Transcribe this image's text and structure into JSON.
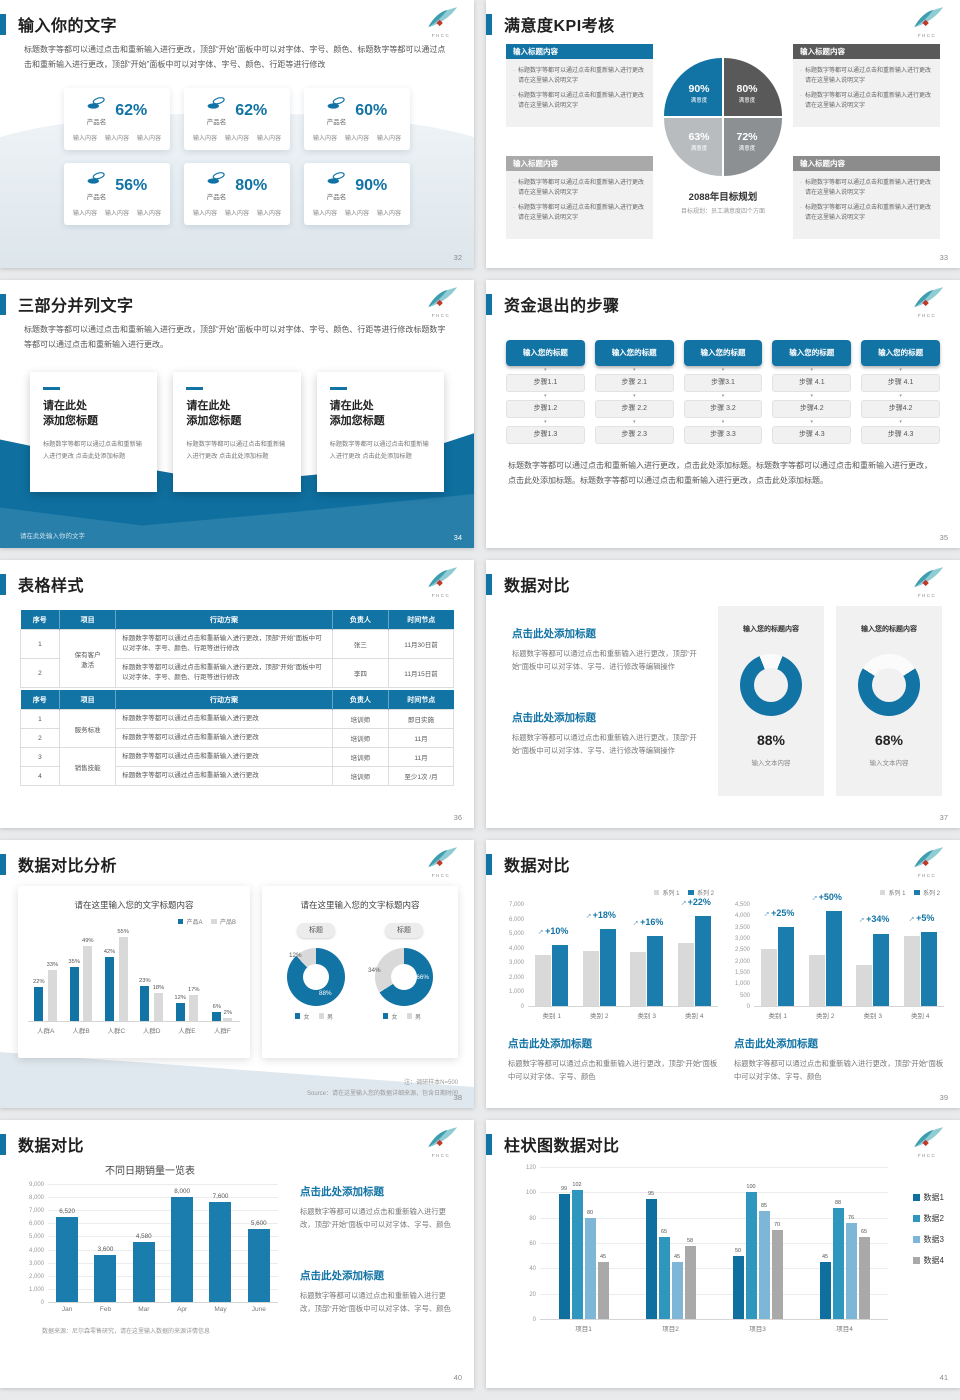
{
  "accent_color": "#1273a5",
  "gray_bar_color": "#d9d9d9",
  "logo": {
    "text": "FHCC"
  },
  "slides": [
    {
      "title": "输入你的文字",
      "page": "32",
      "intro": "标题数字等都可以通过点击和重新输入进行更改，顶部“开始”面板中可以对字体、字号、颜色、标题数字等都可以通过点击和重新输入进行更改，顶部“开始”面板中可以对字体、字号、颜色、行距等进行修改",
      "cards": [
        {
          "name": "产品名",
          "percent": "62%",
          "items": [
            "输入内容",
            "输入内容",
            "输入内容"
          ]
        },
        {
          "name": "产品名",
          "percent": "62%",
          "items": [
            "输入内容",
            "输入内容",
            "输入内容"
          ]
        },
        {
          "name": "产品名",
          "percent": "60%",
          "items": [
            "输入内容",
            "输入内容",
            "输入内容"
          ]
        },
        {
          "name": "产品名",
          "percent": "56%",
          "items": [
            "输入内容",
            "输入内容",
            "输入内容"
          ]
        },
        {
          "name": "产品名",
          "percent": "80%",
          "items": [
            "输入内容",
            "输入内容",
            "输入内容"
          ]
        },
        {
          "name": "产品名",
          "percent": "90%",
          "items": [
            "输入内容",
            "输入内容",
            "输入内容"
          ]
        }
      ]
    },
    {
      "title": "满意度KPI考核",
      "page": "33",
      "boxes": [
        {
          "header": "输入标题内容",
          "color": "#1273a5",
          "bullets": [
            "标题数字等都可以通过点击和重新输入进行更改 请在这里输入说明文字",
            "标题数字等都可以通过点击和重新输入进行更改 请在这里输入说明文字"
          ]
        },
        {
          "header": "输入标题内容",
          "color": "#595959",
          "bullets": [
            "标题数字等都可以通过点击和重新输入进行更改 请在这里输入说明文字",
            "标题数字等都可以通过点击和重新输入进行更改 请在这里输入说明文字"
          ]
        },
        {
          "header": "输入标题内容",
          "color": "#a9a9a9",
          "bullets": [
            "标题数字等都可以通过点击和重新输入进行更改 请在这里输入说明文字",
            "标题数字等都可以通过点击和重新输入进行更改 请在这里输入说明文字"
          ]
        },
        {
          "header": "输入标题内容",
          "color": "#8c8c8c",
          "bullets": [
            "标题数字等都可以通过点击和重新输入进行更改 请在这里输入说明文字",
            "标题数字等都可以通过点击和重新输入进行更改 请在这里输入说明文字"
          ]
        }
      ],
      "chart_data": {
        "type": "pie",
        "slices": [
          {
            "value": "90%",
            "label": "满意度",
            "color": "#1273a5"
          },
          {
            "value": "80%",
            "label": "满意度",
            "color": "#595959"
          },
          {
            "value": "63%",
            "label": "满意度",
            "color": "#b9bcbe"
          },
          {
            "value": "72%",
            "label": "满意度",
            "color": "#8c9093"
          }
        ]
      },
      "center_title": "2088年目标规划",
      "center_sub": "目标规划：员工满意度四个方面"
    },
    {
      "title": "三部分并列文字",
      "page": "34",
      "intro": "标题数字等都可以通过点击和重新输入进行更改，顶部“开始”面板中可以对字体、字号、颜色、行距等进行修改标题数字等都可以通过点击和重新输入进行更改。",
      "cards": [
        {
          "title": "请在此处\n添加您标题",
          "body": "标题数字等都可以通过点击和重新输入进行更改 点击此处添加标题"
        },
        {
          "title": "请在此处\n添加您标题",
          "body": "标题数字等都可以通过点击和重新输入进行更改 点击此处添加标题"
        },
        {
          "title": "请在此处\n添加您标题",
          "body": "标题数字等都可以通过点击和重新输入进行更改 点击此处添加标题"
        }
      ],
      "footer": "请在此处输入你的文字"
    },
    {
      "title": "资金退出的步骤",
      "page": "35",
      "columns": [
        {
          "header": "输入您的标题",
          "steps": [
            "步骤1.1",
            "步骤1.2",
            "步骤1.3"
          ]
        },
        {
          "header": "输入您的标题",
          "steps": [
            "步骤 2.1",
            "步骤 2.2",
            "步骤 2.3"
          ]
        },
        {
          "header": "输入您的标题",
          "steps": [
            "步骤3.1",
            "步骤 3.2",
            "步骤 3.3"
          ]
        },
        {
          "header": "输入您的标题",
          "steps": [
            "步骤 4.1",
            "步骤4.2",
            "步骤 4.3"
          ]
        },
        {
          "header": "输入您的标题",
          "steps": [
            "步骤 4.1",
            "步骤4.2",
            "步骤 4.3"
          ]
        }
      ],
      "body": "标题数字等都可以通过点击和重新输入进行更改，点击此处添加标题。标题数字等都可以通过点击和重新输入进行更改，点击此处添加标题。标题数字等都可以通过点击和重新输入进行更改，点击此处添加标题。"
    },
    {
      "title": "表格样式",
      "page": "36",
      "headers": [
        "序号",
        "项目",
        "行动方案",
        "负责人",
        "时间节点"
      ],
      "table1": [
        {
          "no": "1",
          "project": "保有客户\n激活",
          "span": 2,
          "action": "标题数字等都可以通过点击和重新输入进行更改，顶部“开始”面板中可以对字体、字号、颜色、行距等进行修改",
          "owner": "张三",
          "time": "11月30日前"
        },
        {
          "no": "2",
          "action": "标题数字等都可以通过点击和重新输入进行更改，顶部“开始”面板中可以对字体、字号、颜色、行距等进行修改",
          "owner": "李四",
          "time": "11月15日前"
        }
      ],
      "table2": [
        {
          "no": "1",
          "project": "服务标准",
          "span": 2,
          "action": "标题数字等都可以通过点击和重新输入进行更改",
          "owner": "培训师",
          "time": "即日实施"
        },
        {
          "no": "2",
          "action": "标题数字等都可以通过点击和重新输入进行更改",
          "owner": "培训师",
          "time": "11月"
        },
        {
          "no": "3",
          "project": "销售技能",
          "span": 2,
          "action": "标题数字等都可以通过点击和重新输入进行更改",
          "owner": "培训师",
          "time": "11月"
        },
        {
          "no": "4",
          "action": "标题数字等都可以通过点击和重新输入进行更改",
          "owner": "培训师",
          "time": "至少1次 /月"
        }
      ]
    },
    {
      "title": "数据对比",
      "page": "37",
      "blocks": [
        {
          "heading": "点击此处添加标题",
          "body": "标题数字等都可以通过点击和重新输入进行更改，顶部“开始”面板中可以对字体、字号、进行修改等编辑操作"
        },
        {
          "heading": "点击此处添加标题",
          "body": "标题数字等都可以通过点击和重新输入进行更改，顶部“开始”面板中可以对字体、字号、进行修改等编辑操作"
        }
      ],
      "donut_cards": [
        {
          "header": "输入您的标题内容",
          "percent": 88,
          "percent_label": "88%",
          "caption": "输入文本内容",
          "color": "#1273a5"
        },
        {
          "header": "输入您的标题内容",
          "percent": 68,
          "percent_label": "68%",
          "caption": "输入文本内容",
          "color": "#1273a5"
        }
      ]
    },
    {
      "title": "数据对比分析",
      "page": "38",
      "left_title": "请在这里输入您的文字标题内容",
      "right_title": "请在这里输入您的文字标题内容",
      "chart_data": [
        {
          "type": "bar",
          "categories": [
            "人群A",
            "人群B",
            "人群C",
            "人群D",
            "人群E",
            "人群F"
          ],
          "series": [
            {
              "name": "产品A",
              "color": "#1273a5",
              "values": [
                22,
                35,
                42,
                23,
                12,
                6
              ],
              "labels": [
                "22%",
                "35%",
                "42%",
                "23%",
                "12%",
                "6%"
              ]
            },
            {
              "name": "产品B",
              "color": "#d9d9d9",
              "values": [
                33,
                49,
                55,
                18,
                17,
                2
              ],
              "labels": [
                "33%",
                "49%",
                "55%",
                "18%",
                "17%",
                "2%"
              ]
            }
          ],
          "ylim": [
            0,
            60
          ]
        },
        {
          "type": "pie",
          "title": "标题",
          "slices": [
            {
              "label": "女",
              "value": 88,
              "color": "#1273a5"
            },
            {
              "label": "男",
              "value": 12,
              "color": "#d9d9d9"
            }
          ],
          "labels": [
            "12%",
            "88%"
          ]
        },
        {
          "type": "pie",
          "title": "标题",
          "slices": [
            {
              "label": "女",
              "value": 66,
              "color": "#1273a5"
            },
            {
              "label": "男",
              "value": 34,
              "color": "#d9d9d9"
            }
          ],
          "labels": [
            "34%",
            "66%"
          ]
        }
      ],
      "note1": "注：调研样本N=500",
      "note2": "Source：请在这里输入您的数据详细来源，包含日期时间"
    },
    {
      "title": "数据对比",
      "page": "39",
      "chart_data": [
        {
          "type": "bar",
          "legend": [
            "系列 1",
            "系列 2"
          ],
          "categories": [
            "类别 1",
            "类别 2",
            "类别 3",
            "类别 4"
          ],
          "ticks": [
            "0",
            "1,000",
            "2,000",
            "3,000",
            "4,000",
            "5,000",
            "6,000",
            "7,000"
          ],
          "ylim": [
            0,
            7000
          ],
          "series": [
            {
              "name": "系列 1",
              "color": "#d9d9d9",
              "values": [
                3500,
                3800,
                3700,
                4300
              ]
            },
            {
              "name": "系列 2",
              "color": "#1b7dae",
              "values": [
                4200,
                5300,
                4800,
                6200
              ]
            }
          ],
          "growth": [
            "+10%",
            "+18%",
            "+16%",
            "+22%"
          ]
        },
        {
          "type": "bar",
          "legend": [
            "系列 1",
            "系列 2"
          ],
          "categories": [
            "类别 1",
            "类别 2",
            "类别 3",
            "类别 4"
          ],
          "ticks": [
            "0",
            "500",
            "1,000",
            "1,500",
            "2,000",
            "2,500",
            "3,000",
            "3,500",
            "4,000",
            "4,500"
          ],
          "ylim": [
            0,
            4500
          ],
          "series": [
            {
              "name": "系列 1",
              "color": "#d9d9d9",
              "values": [
                2500,
                2250,
                1800,
                3100
              ]
            },
            {
              "name": "系列 2",
              "color": "#1b7dae",
              "values": [
                3500,
                4200,
                3200,
                3250
              ]
            }
          ],
          "growth": [
            "+25%",
            "+50%",
            "+34%",
            "+5%"
          ]
        }
      ],
      "blocks": [
        {
          "heading": "点击此处添加标题",
          "body": "标题数字等都可以通过点击和重新输入进行更改，顶部“开始”面板中可以对字体、字号、颜色"
        },
        {
          "heading": "点击此处添加标题",
          "body": "标题数字等都可以通过点击和重新输入进行更改，顶部“开始”面板中可以对字体、字号、颜色"
        }
      ]
    },
    {
      "title": "数据对比",
      "page": "40",
      "chart_data": {
        "type": "bar",
        "title": "不同日期销量一览表",
        "categories": [
          "Jan",
          "Feb",
          "Mar",
          "Apr",
          "May",
          "June"
        ],
        "values": [
          6520,
          3600,
          4580,
          8000,
          7600,
          5600
        ],
        "labels": [
          "6,520",
          "3,600",
          "4,580",
          "8,000",
          "7,600",
          "5,600"
        ],
        "ticks": [
          "0",
          "1,000",
          "2,000",
          "3,000",
          "4,000",
          "5,000",
          "6,000",
          "7,000",
          "8,000",
          "9,000"
        ],
        "ylim": [
          0,
          9000
        ],
        "bar_color": "#1b7dae"
      },
      "source": "数据来源：尼尔森零售研究，请在这里输入数据的来源详情信息",
      "blocks": [
        {
          "heading": "点击此处添加标题",
          "body": "标题数字等都可以通过点击和重新输入进行更改，顶部“开始”面板中可以对字体、字号、颜色"
        },
        {
          "heading": "点击此处添加标题",
          "body": "标题数字等都可以通过点击和重新输入进行更改，顶部“开始”面板中可以对字体、字号、颜色"
        }
      ]
    },
    {
      "title": "柱状图数据对比",
      "page": "41",
      "chart_data": {
        "type": "bar",
        "categories": [
          "项目1",
          "项目2",
          "项目3",
          "项目4"
        ],
        "ticks": [
          "0",
          "20",
          "40",
          "60",
          "80",
          "100",
          "120"
        ],
        "ylim": [
          0,
          120
        ],
        "series": [
          {
            "name": "数据1",
            "color": "#0f6f9e",
            "values": [
              99,
              95,
              50,
              45
            ],
            "labels": [
              "99",
              "95",
              "50",
              "45"
            ]
          },
          {
            "name": "数据2",
            "color": "#2f96bd",
            "values": [
              102,
              65,
              100,
              88
            ],
            "labels": [
              "102",
              "65",
              "100",
              "88"
            ]
          },
          {
            "name": "数据3",
            "color": "#7db6d6",
            "values": [
              80,
              45,
              85,
              76
            ],
            "labels": [
              "80",
              "45",
              "85",
              "76"
            ]
          },
          {
            "name": "数据4",
            "color": "#a9a9a9",
            "values": [
              45,
              58,
              70,
              65
            ],
            "labels": [
              "45",
              "58",
              "70",
              "65"
            ]
          }
        ]
      }
    }
  ]
}
